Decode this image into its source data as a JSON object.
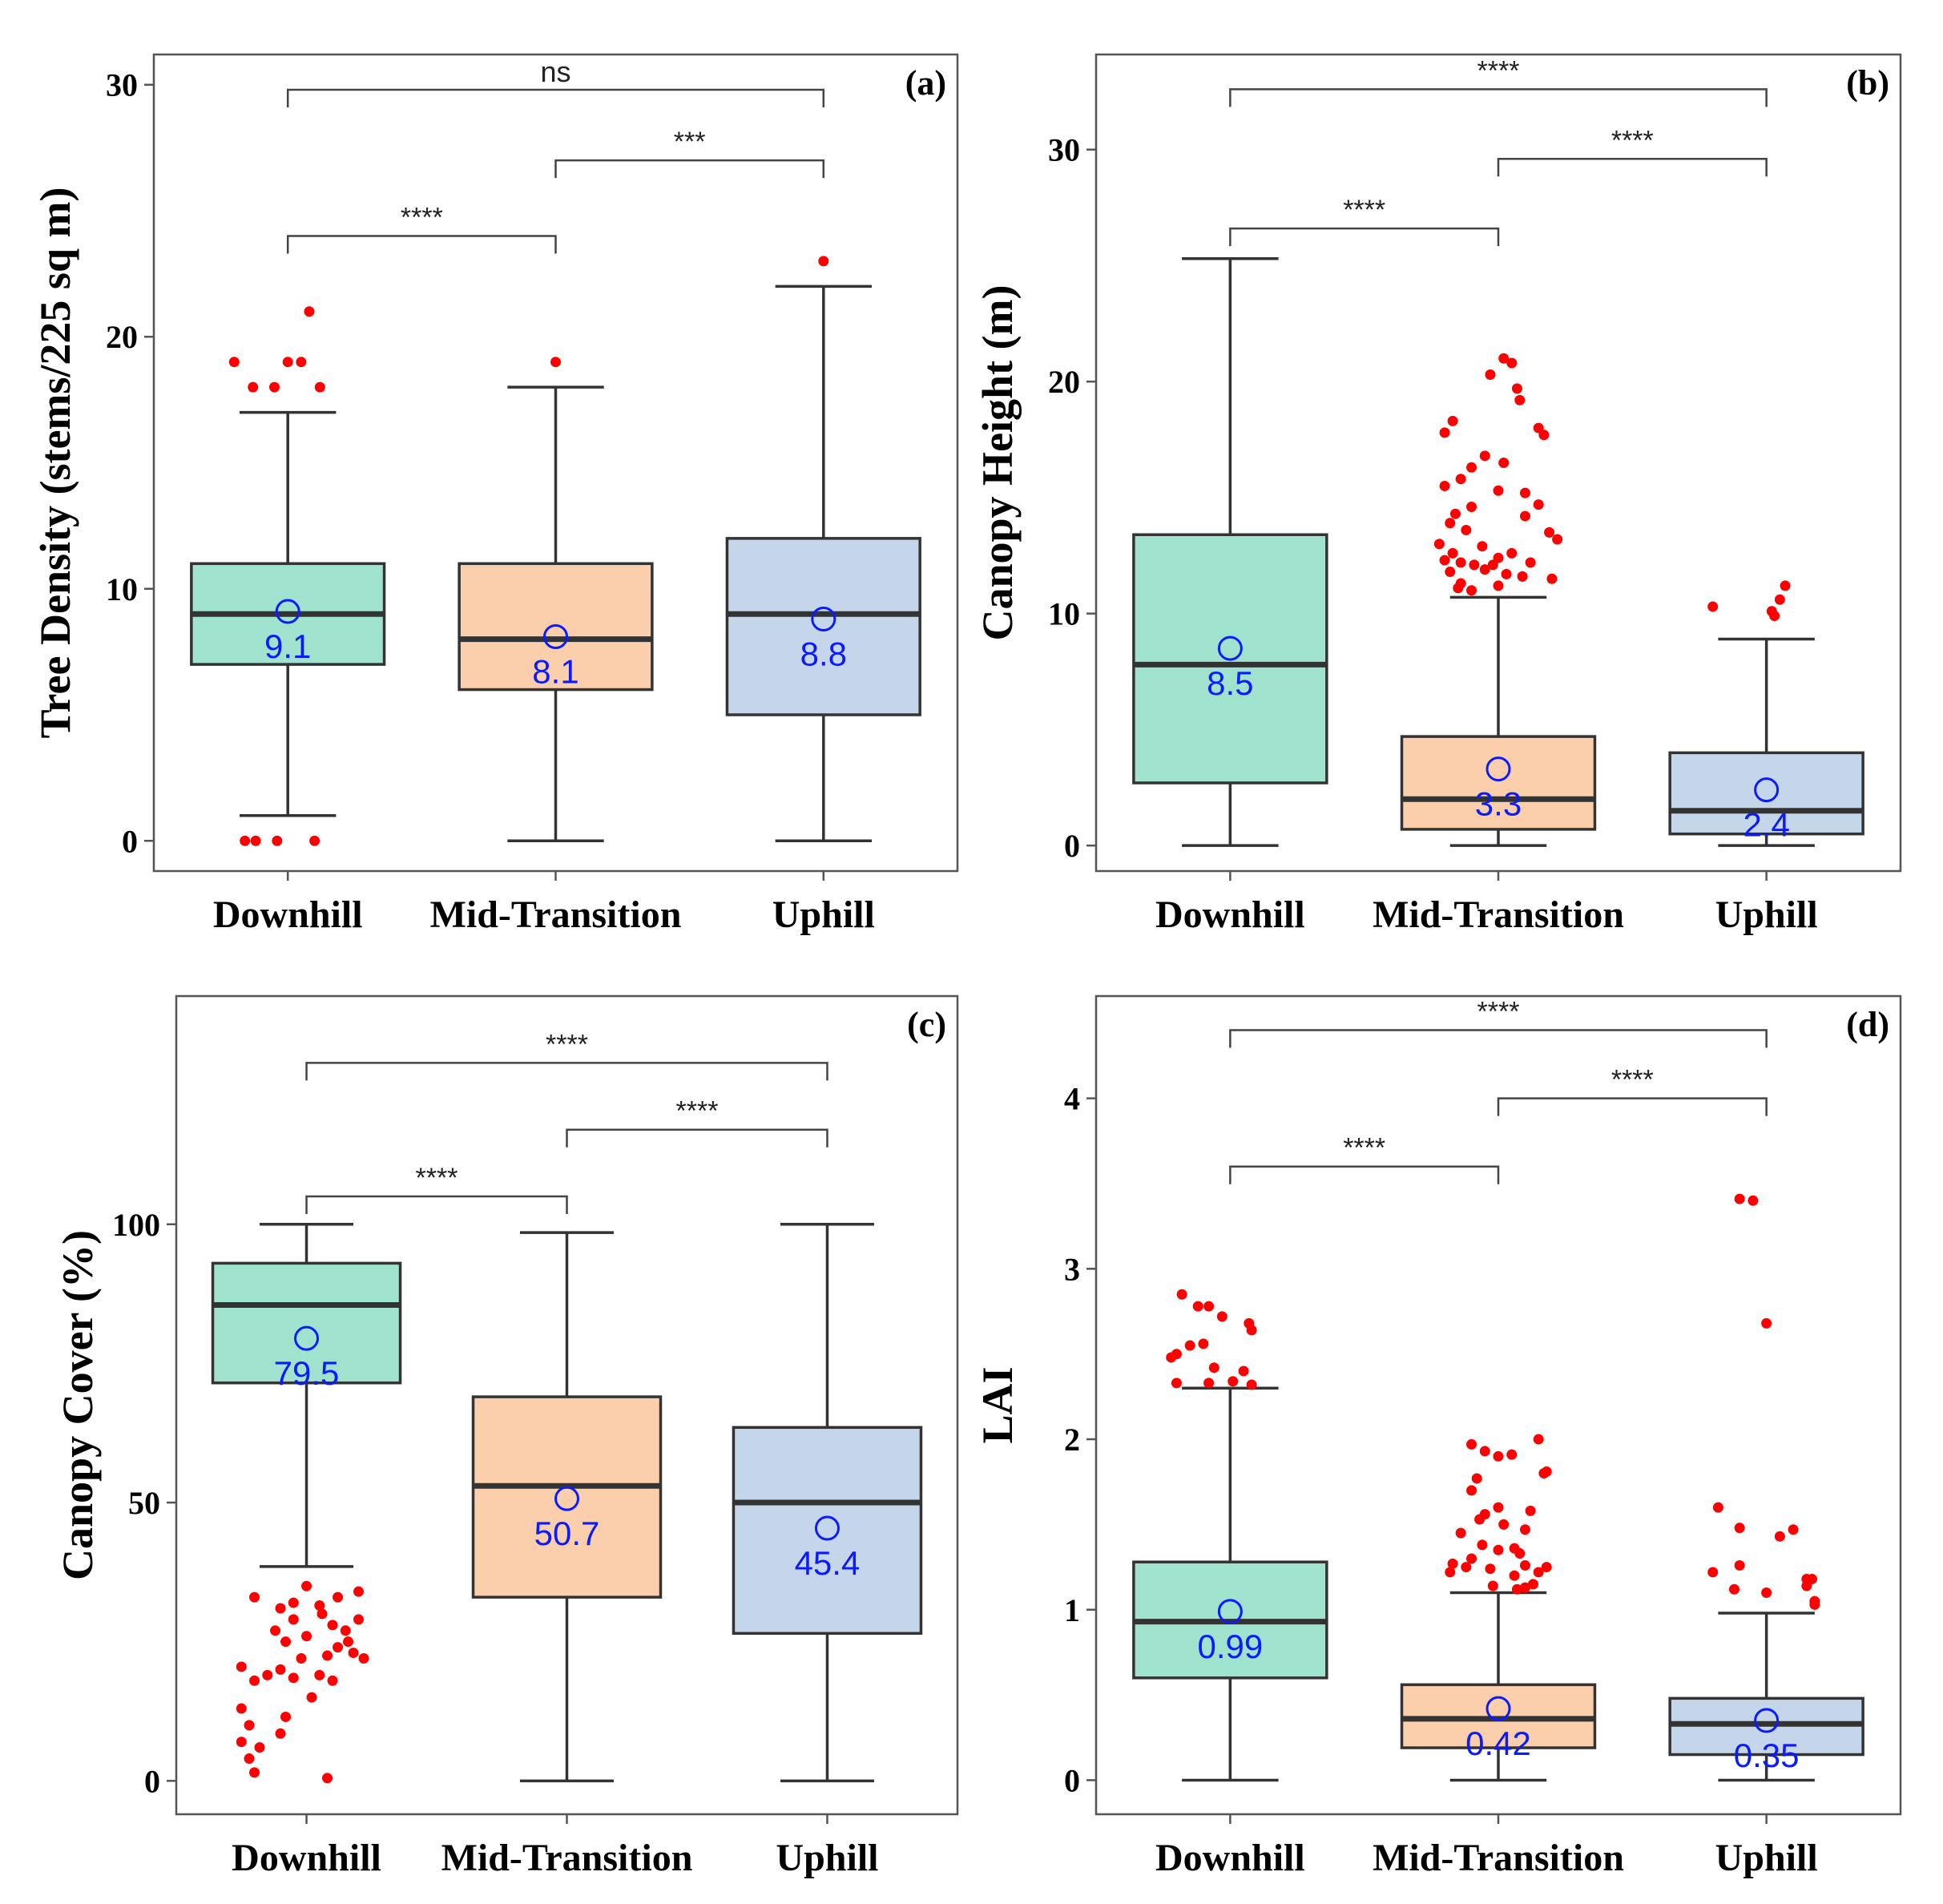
{
  "colors": {
    "downhill_fill": "#9fe3cf",
    "mid_fill": "#fbcfab",
    "uphill_fill": "#c5d6ea",
    "outlier": "#ff0000",
    "mean_marker": "#0b1bff",
    "box_stroke": "#333333",
    "bracket": "#444444",
    "frame": "#555555"
  },
  "chart_data": [
    {
      "type": "box",
      "panel_label": "(a)",
      "ylabel": "Tree Density (stems/225 sq m)",
      "categories": [
        "Downhill",
        "Mid-Transition",
        "Uphill"
      ],
      "ylim": [
        -1.2,
        31.2
      ],
      "yticks": [
        0,
        10,
        20,
        30
      ],
      "boxes": [
        {
          "q1": 7,
          "median": 9,
          "q3": 11,
          "whisker_low": 1,
          "whisker_high": 17,
          "mean": 9.1,
          "mean_label": "9.1",
          "outliers": [
            [
              -0.2,
              19
            ],
            [
              -0.13,
              18
            ],
            [
              -0.05,
              18
            ],
            [
              0.0,
              19
            ],
            [
              0.05,
              19
            ],
            [
              0.08,
              21
            ],
            [
              0.12,
              18
            ],
            [
              -0.16,
              0
            ],
            [
              -0.12,
              0
            ],
            [
              -0.04,
              0
            ],
            [
              0.1,
              0
            ]
          ]
        },
        {
          "q1": 6,
          "median": 8,
          "q3": 11,
          "whisker_low": 0,
          "whisker_high": 18,
          "mean": 8.1,
          "mean_label": "8.1",
          "outliers": [
            [
              0.0,
              19
            ]
          ]
        },
        {
          "q1": 5,
          "median": 9,
          "q3": 12,
          "whisker_low": 0,
          "whisker_high": 22,
          "mean": 8.8,
          "mean_label": "8.8",
          "outliers": [
            [
              0.0,
              23
            ]
          ]
        }
      ],
      "brackets": [
        {
          "from": 0,
          "to": 1,
          "y": 24,
          "label": "****"
        },
        {
          "from": 1,
          "to": 2,
          "y": 27,
          "label": "***"
        },
        {
          "from": 0,
          "to": 2,
          "y": 29.8,
          "label": "ns"
        }
      ]
    },
    {
      "type": "box",
      "panel_label": "(b)",
      "ylabel": "Canopy Height (m)",
      "categories": [
        "Downhill",
        "Mid-Transition",
        "Uphill"
      ],
      "ylim": [
        -1.1,
        34.1
      ],
      "yticks": [
        0,
        10,
        20,
        30
      ],
      "boxes": [
        {
          "q1": 2.7,
          "median": 7.8,
          "q3": 13.4,
          "whisker_low": 0,
          "whisker_high": 25.3,
          "mean": 8.5,
          "mean_label": "8.5",
          "outliers": []
        },
        {
          "q1": 0.7,
          "median": 2.0,
          "q3": 4.7,
          "whisker_low": 0,
          "whisker_high": 10.7,
          "mean": 3.3,
          "mean_label": "3.3",
          "outliers": [
            [
              0.02,
              21.0
            ],
            [
              0.05,
              20.8
            ],
            [
              -0.03,
              20.3
            ],
            [
              0.07,
              19.7
            ],
            [
              0.08,
              19.2
            ],
            [
              0.15,
              18.0
            ],
            [
              0.17,
              17.7
            ],
            [
              -0.17,
              18.3
            ],
            [
              -0.2,
              17.8
            ],
            [
              -0.05,
              16.8
            ],
            [
              -0.1,
              16.3
            ],
            [
              0.02,
              16.5
            ],
            [
              -0.14,
              15.8
            ],
            [
              -0.2,
              15.5
            ],
            [
              0.1,
              15.2
            ],
            [
              0.0,
              15.3
            ],
            [
              -0.1,
              14.6
            ],
            [
              0.15,
              14.7
            ],
            [
              -0.16,
              14.3
            ],
            [
              -0.18,
              13.9
            ],
            [
              0.1,
              14.2
            ],
            [
              -0.12,
              13.6
            ],
            [
              0.19,
              13.5
            ],
            [
              0.22,
              13.2
            ],
            [
              -0.22,
              13.0
            ],
            [
              -0.17,
              12.6
            ],
            [
              -0.06,
              12.9
            ],
            [
              0.05,
              12.6
            ],
            [
              -0.2,
              12.3
            ],
            [
              -0.14,
              12.2
            ],
            [
              -0.09,
              12.1
            ],
            [
              -0.02,
              12.1
            ],
            [
              0.0,
              12.4
            ],
            [
              0.12,
              12.2
            ],
            [
              -0.18,
              11.8
            ],
            [
              -0.05,
              11.9
            ],
            [
              0.03,
              11.7
            ],
            [
              0.09,
              11.6
            ],
            [
              0.2,
              11.5
            ],
            [
              -0.14,
              11.3
            ],
            [
              -0.1,
              11.0
            ],
            [
              0.0,
              11.2
            ],
            [
              -0.15,
              11.1
            ]
          ]
        },
        {
          "q1": 0.5,
          "median": 1.5,
          "q3": 4.0,
          "whisker_low": 0,
          "whisker_high": 8.9,
          "mean": 2.4,
          "mean_label": "2.4",
          "outliers": [
            [
              -0.2,
              10.3
            ],
            [
              0.02,
              10.1
            ],
            [
              0.05,
              10.6
            ],
            [
              0.07,
              11.2
            ],
            [
              0.03,
              9.9
            ]
          ]
        }
      ],
      "brackets": [
        {
          "from": 0,
          "to": 1,
          "y": 26.6,
          "label": "****"
        },
        {
          "from": 1,
          "to": 2,
          "y": 29.6,
          "label": "****"
        },
        {
          "from": 0,
          "to": 2,
          "y": 32.6,
          "label": "****"
        }
      ]
    },
    {
      "type": "box",
      "panel_label": "(c)",
      "ylabel": "Canopy Cover (%)",
      "categories": [
        "Downhill",
        "Mid-Transition",
        "Uphill"
      ],
      "ylim": [
        -6,
        141
      ],
      "yticks": [
        0,
        50,
        100
      ],
      "boxes": [
        {
          "q1": 71.5,
          "median": 85.5,
          "q3": 93,
          "whisker_low": 38.5,
          "whisker_high": 100,
          "mean": 79.5,
          "mean_label": "79.5",
          "outliers": [
            [
              -0.2,
              1.5
            ],
            [
              -0.22,
              4
            ],
            [
              -0.18,
              6
            ],
            [
              -0.25,
              7
            ],
            [
              -0.1,
              8.5
            ],
            [
              -0.22,
              10
            ],
            [
              -0.25,
              13
            ],
            [
              -0.08,
              11.5
            ],
            [
              -0.2,
              18
            ],
            [
              -0.15,
              19
            ],
            [
              -0.05,
              18.5
            ],
            [
              -0.1,
              20
            ],
            [
              0.05,
              19
            ],
            [
              0.1,
              18
            ],
            [
              -0.25,
              20.5
            ],
            [
              -0.02,
              22
            ],
            [
              0.08,
              22.5
            ],
            [
              0.12,
              24
            ],
            [
              0.18,
              23
            ],
            [
              0.22,
              22
            ],
            [
              -0.08,
              25
            ],
            [
              0.0,
              26
            ],
            [
              0.1,
              28
            ],
            [
              0.15,
              27
            ],
            [
              0.2,
              29
            ],
            [
              0.06,
              30
            ],
            [
              -0.1,
              31
            ],
            [
              -0.05,
              32
            ],
            [
              0.12,
              33
            ],
            [
              0.05,
              31.5
            ],
            [
              0.2,
              34
            ],
            [
              -0.2,
              33
            ],
            [
              0.0,
              35
            ],
            [
              0.08,
              0.5
            ],
            [
              0.16,
              25
            ],
            [
              -0.12,
              27
            ],
            [
              0.02,
              15
            ],
            [
              -0.05,
              29
            ]
          ]
        },
        {
          "q1": 33,
          "median": 53,
          "q3": 69,
          "whisker_low": 0,
          "whisker_high": 98.5,
          "mean": 50.7,
          "mean_label": "50.7",
          "outliers": []
        },
        {
          "q1": 26.5,
          "median": 50,
          "q3": 63.5,
          "whisker_low": 0,
          "whisker_high": 100,
          "mean": 45.4,
          "mean_label": "45.4",
          "outliers": []
        }
      ],
      "brackets": [
        {
          "from": 0,
          "to": 1,
          "y": 105,
          "label": "****"
        },
        {
          "from": 1,
          "to": 2,
          "y": 117,
          "label": "****"
        },
        {
          "from": 0,
          "to": 2,
          "y": 129,
          "label": "****"
        }
      ]
    },
    {
      "type": "box",
      "panel_label": "(d)",
      "ylabel": "LAI",
      "categories": [
        "Downhill",
        "Mid-Transition",
        "Uphill"
      ],
      "ylim": [
        -0.2,
        4.6
      ],
      "yticks": [
        0,
        1,
        2,
        3,
        4
      ],
      "boxes": [
        {
          "q1": 0.6,
          "median": 0.93,
          "q3": 1.28,
          "whisker_low": 0,
          "whisker_high": 2.3,
          "mean": 0.99,
          "mean_label": "0.99",
          "outliers": [
            [
              -0.18,
              2.85
            ],
            [
              -0.12,
              2.78
            ],
            [
              -0.08,
              2.78
            ],
            [
              -0.03,
              2.72
            ],
            [
              0.07,
              2.68
            ],
            [
              0.08,
              2.64
            ],
            [
              -0.15,
              2.55
            ],
            [
              -0.1,
              2.56
            ],
            [
              -0.2,
              2.5
            ],
            [
              -0.06,
              2.42
            ],
            [
              0.05,
              2.4
            ],
            [
              -0.22,
              2.48
            ],
            [
              0.01,
              2.34
            ],
            [
              0.08,
              2.32
            ],
            [
              -0.2,
              2.33
            ],
            [
              -0.08,
              2.33
            ]
          ]
        },
        {
          "q1": 0.19,
          "median": 0.36,
          "q3": 0.56,
          "whisker_low": 0,
          "whisker_high": 1.1,
          "mean": 0.42,
          "mean_label": "0.42",
          "outliers": [
            [
              -0.1,
              1.97
            ],
            [
              -0.05,
              1.93
            ],
            [
              0.0,
              1.9
            ],
            [
              0.05,
              1.91
            ],
            [
              0.15,
              2.0
            ],
            [
              0.17,
              1.8
            ],
            [
              0.18,
              1.81
            ],
            [
              -0.08,
              1.77
            ],
            [
              -0.1,
              1.7
            ],
            [
              -0.05,
              1.56
            ],
            [
              0.0,
              1.6
            ],
            [
              0.12,
              1.58
            ],
            [
              -0.07,
              1.53
            ],
            [
              0.02,
              1.5
            ],
            [
              0.1,
              1.47
            ],
            [
              -0.14,
              1.45
            ],
            [
              -0.06,
              1.38
            ],
            [
              0.08,
              1.33
            ],
            [
              -0.1,
              1.3
            ],
            [
              0.0,
              1.35
            ],
            [
              0.06,
              1.36
            ],
            [
              -0.17,
              1.27
            ],
            [
              -0.12,
              1.25
            ],
            [
              -0.03,
              1.24
            ],
            [
              0.1,
              1.26
            ],
            [
              0.15,
              1.22
            ],
            [
              -0.18,
              1.22
            ],
            [
              0.18,
              1.25
            ],
            [
              0.06,
              1.2
            ],
            [
              0.13,
              1.15
            ],
            [
              -0.02,
              1.14
            ],
            [
              0.07,
              1.12
            ],
            [
              0.1,
              1.13
            ]
          ]
        },
        {
          "q1": 0.15,
          "median": 0.33,
          "q3": 0.48,
          "whisker_low": 0,
          "whisker_high": 0.98,
          "mean": 0.35,
          "mean_label": "0.35",
          "outliers": [
            [
              -0.1,
              3.41
            ],
            [
              -0.05,
              3.4
            ],
            [
              0.0,
              2.68
            ],
            [
              -0.18,
              1.6
            ],
            [
              -0.1,
              1.48
            ],
            [
              0.1,
              1.47
            ],
            [
              0.17,
              1.18
            ],
            [
              0.15,
              1.14
            ],
            [
              -0.2,
              1.22
            ],
            [
              -0.1,
              1.26
            ],
            [
              0.05,
              1.43
            ],
            [
              0.18,
              1.03
            ],
            [
              -0.12,
              1.12
            ],
            [
              0.0,
              1.1
            ],
            [
              0.18,
              1.05
            ],
            [
              0.15,
              1.18
            ]
          ]
        }
      ],
      "brackets": [
        {
          "from": 0,
          "to": 1,
          "y": 3.6,
          "label": "****"
        },
        {
          "from": 1,
          "to": 2,
          "y": 4.0,
          "label": "****"
        },
        {
          "from": 0,
          "to": 2,
          "y": 4.4,
          "label": "****"
        }
      ]
    }
  ]
}
